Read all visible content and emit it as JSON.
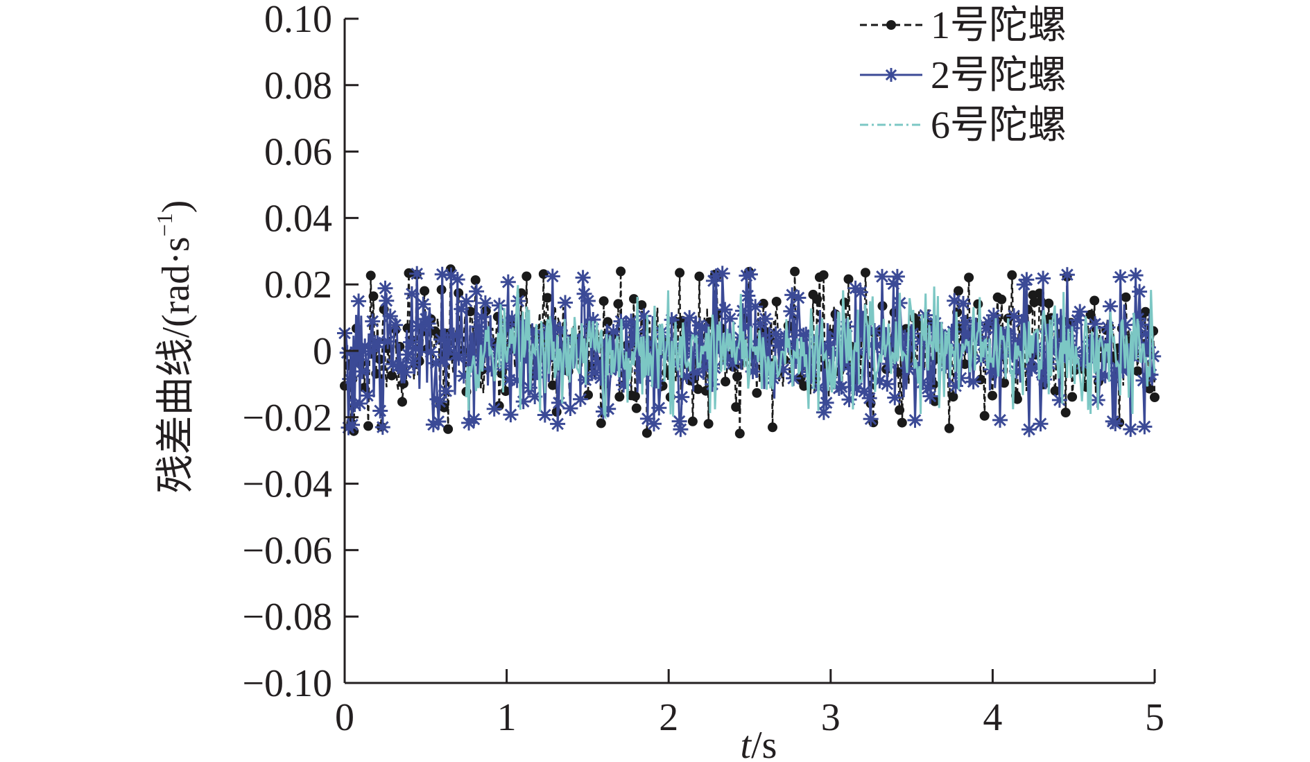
{
  "chart_data": {
    "type": "line",
    "title": "",
    "xlabel_italic": "t",
    "xlabel_rest": "/s",
    "ylabel": "残差曲线/(rad·s",
    "ylabel_sup": "−1",
    "ylabel_close": ")",
    "xlim": [
      0,
      5
    ],
    "ylim": [
      -0.1,
      0.1
    ],
    "x_ticks": [
      0,
      1,
      2,
      3,
      4,
      5
    ],
    "x_tick_labels": [
      "0",
      "1",
      "2",
      "3",
      "4",
      "5"
    ],
    "y_ticks": [
      0.1,
      0.08,
      0.06,
      0.04,
      0.02,
      0,
      -0.02,
      -0.04,
      -0.06,
      -0.08,
      -0.1
    ],
    "y_tick_labels": [
      "0.10",
      "0.08",
      "0.06",
      "0.04",
      "0.02",
      "0",
      "−0.02",
      "−0.04",
      "−0.06",
      "−0.08",
      "−0.10"
    ],
    "grid": false,
    "legend_position": "top-right",
    "series": [
      {
        "name": "1号陀螺",
        "color": "#1a1a1a",
        "marker": "dot",
        "line": "dashed",
        "approx_amplitude": 0.025
      },
      {
        "name": "2号陀螺",
        "color": "#3b4a96",
        "marker": "star",
        "line": "solid",
        "approx_amplitude": 0.024
      },
      {
        "name": "6号陀螺",
        "color": "#7cc7c4",
        "marker": "none",
        "line": "dash-dot",
        "approx_amplitude": 0.02
      }
    ]
  }
}
